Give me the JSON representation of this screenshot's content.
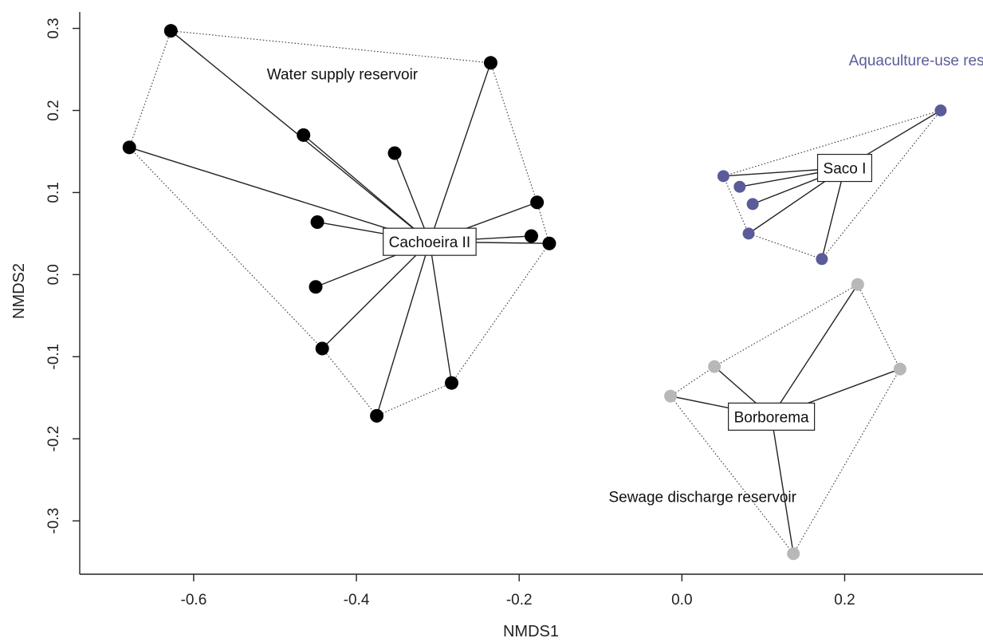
{
  "chart_data": {
    "type": "scatter",
    "title": "",
    "xlabel": "NMDS1",
    "ylabel": "NMDS2",
    "xlim": [
      -0.74,
      0.37
    ],
    "ylim": [
      -0.365,
      0.32
    ],
    "x_ticks": [
      -0.6,
      -0.4,
      -0.2,
      0.0,
      0.2
    ],
    "x_tick_labels": [
      "-0.6",
      "-0.4",
      "-0.2",
      "0.0",
      "0.2"
    ],
    "y_ticks": [
      -0.3,
      -0.2,
      -0.1,
      0.0,
      0.1,
      0.2,
      0.3
    ],
    "y_tick_labels": [
      "-0.3",
      "-0.2",
      "-0.1",
      "0.0",
      "0.1",
      "0.2",
      "0.3"
    ],
    "grid": false,
    "groups": [
      {
        "name": "Cachoeira II",
        "note": "Water supply reservoir",
        "color": "#000000",
        "note_color": "#111111",
        "point_size": 8.5,
        "centroid": [
          -0.31,
          0.04
        ],
        "note_position": [
          -0.51,
          0.238
        ],
        "points": [
          [
            -0.628,
            0.297
          ],
          [
            -0.235,
            0.258
          ],
          [
            -0.679,
            0.155
          ],
          [
            -0.465,
            0.17
          ],
          [
            -0.353,
            0.148
          ],
          [
            -0.178,
            0.088
          ],
          [
            -0.448,
            0.064
          ],
          [
            -0.185,
            0.047
          ],
          [
            -0.163,
            0.038
          ],
          [
            -0.45,
            -0.015
          ],
          [
            -0.442,
            -0.09
          ],
          [
            -0.283,
            -0.132
          ],
          [
            -0.375,
            -0.172
          ]
        ],
        "hull": [
          0,
          1,
          5,
          8,
          11,
          12,
          10,
          2
        ]
      },
      {
        "name": "Saco I",
        "note": "Aquaculture-use reservoir",
        "color": "#5b5b9a",
        "note_color": "#5b5b9a",
        "point_size": 7.5,
        "centroid": [
          0.2,
          0.13
        ],
        "note_position": [
          0.205,
          0.255
        ],
        "points": [
          [
            0.318,
            0.2
          ],
          [
            0.051,
            0.12
          ],
          [
            0.071,
            0.107
          ],
          [
            0.087,
            0.086
          ],
          [
            0.082,
            0.05
          ],
          [
            0.172,
            0.019
          ]
        ],
        "hull": [
          0,
          5,
          4,
          1
        ]
      },
      {
        "name": "Borborema",
        "note": "Sewage discharge reservoir",
        "color": "#b8b8b8",
        "note_color": "#111111",
        "point_size": 8,
        "centroid": [
          0.11,
          -0.173
        ],
        "note_position": [
          -0.09,
          -0.277
        ],
        "points": [
          [
            0.216,
            -0.012
          ],
          [
            0.268,
            -0.115
          ],
          [
            0.04,
            -0.112
          ],
          [
            -0.014,
            -0.148
          ],
          [
            0.137,
            -0.34
          ]
        ],
        "hull": [
          0,
          1,
          4,
          3,
          2
        ]
      }
    ]
  }
}
